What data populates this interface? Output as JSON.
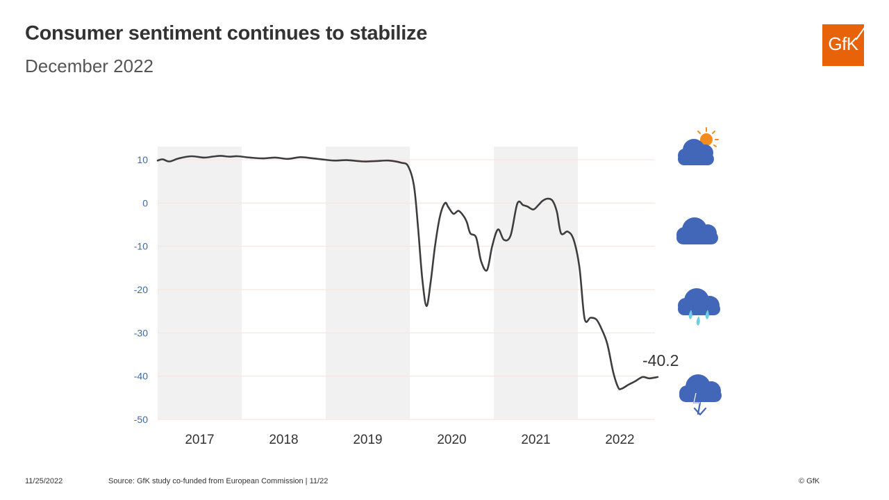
{
  "header": {
    "title": "Consumer sentiment continues to stabilize",
    "subtitle": "December 2022",
    "logo_text": "GfK",
    "brand_color": "#e8620a"
  },
  "footer": {
    "date": "11/25/2022",
    "source": "Source: GfK study co-funded from European Commission | 11/22",
    "copyright": "© GfK"
  },
  "weather_icons": [
    "sun-behind-cloud-icon",
    "cloud-icon",
    "rain-cloud-icon",
    "storm-cloud-icon"
  ],
  "chart_data": {
    "type": "line",
    "title": "",
    "xlabel": "",
    "ylabel": "",
    "ylim": [
      -50,
      10
    ],
    "yticks": [
      10,
      0,
      -10,
      -20,
      -30,
      -40,
      -50
    ],
    "xlim": [
      2017.0,
      2022.95
    ],
    "year_labels": [
      "2017",
      "2018",
      "2019",
      "2020",
      "2021",
      "2022"
    ],
    "shaded_years": [
      "2017",
      "2019",
      "2021"
    ],
    "last_value_label": "-40.2",
    "line_color": "#3d3d3f",
    "band_color": "#f1f1f1",
    "grid_color": "#f6e3da",
    "tick_color": "#3d6aa5",
    "series": [
      {
        "x": [
          2017.0,
          2017.06,
          2017.14,
          2017.25,
          2017.4,
          2017.55,
          2017.65,
          2017.75,
          2017.85,
          2017.95,
          2018.1,
          2018.25,
          2018.4,
          2018.55,
          2018.7,
          2018.85,
          2018.95,
          2019.1,
          2019.25,
          2019.45,
          2019.6,
          2019.75,
          2019.9,
          2019.98,
          2020.05,
          2020.1,
          2020.15,
          2020.2,
          2020.25,
          2020.3,
          2020.36,
          2020.42,
          2020.46,
          2020.52,
          2020.58,
          2020.64,
          2020.68,
          2020.72,
          2020.79,
          2020.85,
          2020.92,
          2020.98,
          2021.05,
          2021.12,
          2021.2,
          2021.28,
          2021.35,
          2021.4,
          2021.47,
          2021.53,
          2021.58,
          2021.64,
          2021.7,
          2021.75,
          2021.8,
          2021.88,
          2021.95,
          2022.02,
          2022.08,
          2022.15,
          2022.22,
          2022.28,
          2022.35,
          2022.42,
          2022.48,
          2022.52,
          2022.6,
          2022.68,
          2022.77,
          2022.85,
          2022.95
        ],
        "y": [
          9.8,
          10.1,
          9.6,
          10.3,
          10.8,
          10.5,
          10.7,
          10.9,
          10.7,
          10.8,
          10.5,
          10.3,
          10.5,
          10.2,
          10.6,
          10.3,
          10.1,
          9.8,
          9.9,
          9.6,
          9.7,
          9.8,
          9.3,
          8.5,
          4.0,
          -6.0,
          -17.8,
          -23.8,
          -18.0,
          -10.0,
          -3.0,
          0.0,
          -1.0,
          -2.5,
          -1.8,
          -3.0,
          -4.5,
          -7.0,
          -8.0,
          -13.5,
          -15.5,
          -10.0,
          -6.1,
          -8.5,
          -7.5,
          -0.1,
          -0.5,
          -0.8,
          -1.5,
          -0.5,
          0.5,
          1.0,
          0.5,
          -2.0,
          -7.0,
          -6.6,
          -8.5,
          -15.0,
          -26.7,
          -26.5,
          -26.9,
          -29.0,
          -32.5,
          -39.0,
          -42.6,
          -42.9,
          -42.0,
          -41.2,
          -40.2,
          -40.5,
          -40.2
        ]
      }
    ]
  }
}
